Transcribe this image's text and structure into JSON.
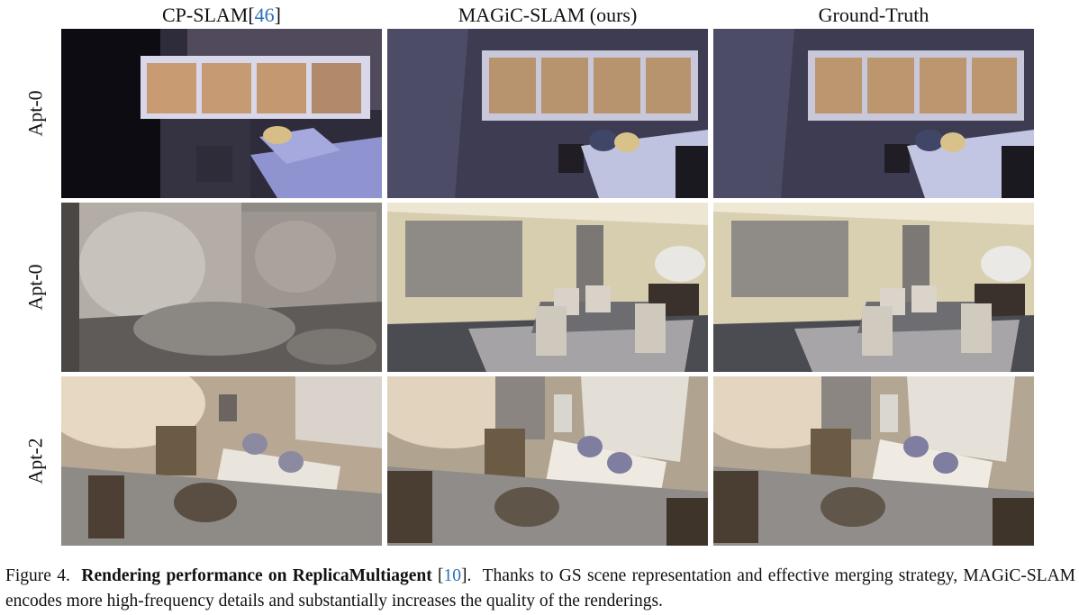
{
  "columns": [
    {
      "label": "CP-SLAM[",
      "ref": "46",
      "suffix": "]"
    },
    {
      "label": "MAGiC-SLAM (ours)"
    },
    {
      "label": "Ground-Truth"
    }
  ],
  "rows": [
    "Apt-0",
    "Apt-0",
    "Apt-2"
  ],
  "caption": {
    "prefix": "Figure 4.",
    "bold": "Rendering performance on ReplicaMultiagent",
    "ref_open": "[",
    "ref": "10",
    "ref_close": "].",
    "rest": "Thanks to GS scene representation and effective merging strategy, MAGiC-SLAM encodes more high-frequency details and substantially increases the quality of the renderings."
  }
}
